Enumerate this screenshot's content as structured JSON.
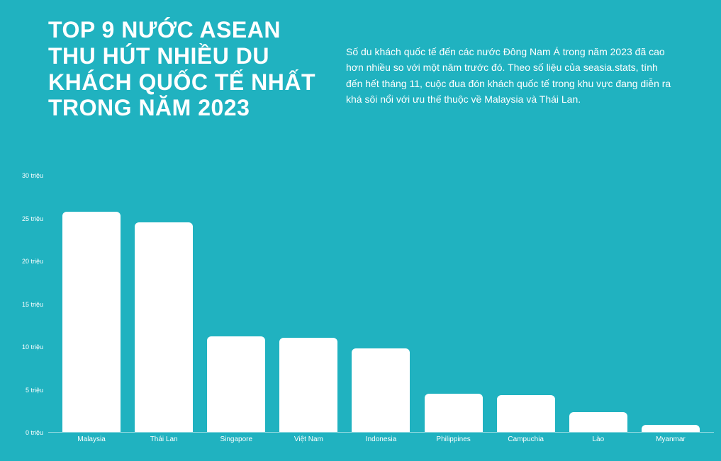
{
  "header": {
    "title": "TOP 9 NƯỚC ASEAN THU HÚT NHIỀU DU KHÁCH QUỐC TẾ NHẤT TRONG NĂM 2023",
    "description": "Số du khách quốc tế đến các nước Đông Nam Á trong năm 2023 đã cao hơn nhiều so với một năm trước đó. Theo số liệu của seasia.stats, tính đến hết tháng 11, cuộc đua đón khách quốc tế trong khu vực đang diễn ra khá sôi nổi với ưu thế thuộc về Malaysia và Thái Lan."
  },
  "chart": {
    "type": "bar",
    "categories": [
      "Malaysia",
      "Thái Lan",
      "Singapore",
      "Việt Nam",
      "Indonesia",
      "Philippines",
      "Campuchia",
      "Lào",
      "Myanmar"
    ],
    "values": [
      25.8,
      24.5,
      11.2,
      11.0,
      9.8,
      4.5,
      4.3,
      2.3,
      0.8
    ],
    "bar_color": "#ffffff",
    "background_color": "#20b2c0",
    "axis_color": "#ffffff",
    "ylim": [
      0,
      30
    ],
    "ytick_step": 5,
    "ytick_suffix": " triệu",
    "bar_border_radius": 6,
    "title_fontsize": 32,
    "label_fontsize": 10,
    "tick_fontsize": 9
  }
}
